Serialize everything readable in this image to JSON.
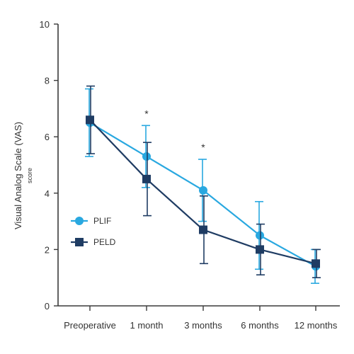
{
  "chart_data": {
    "type": "line",
    "categories": [
      "Preoperative",
      "1 month",
      "3 months",
      "6 months",
      "12 months"
    ],
    "ylabel": "Visual Analog Scale (VAS)",
    "ylabel_sub": "score",
    "ylim": [
      0,
      10
    ],
    "yticks": [
      0,
      2,
      4,
      6,
      8,
      10
    ],
    "grid": false,
    "legend_position": "left-center",
    "series": [
      {
        "name": "PLIF",
        "color": "#29a8e0",
        "marker": "circle",
        "values": [
          6.5,
          5.3,
          4.1,
          2.5,
          1.4
        ],
        "error": [
          1.2,
          1.1,
          1.1,
          1.2,
          0.6
        ]
      },
      {
        "name": "PELD",
        "color": "#1f3c63",
        "marker": "square",
        "values": [
          6.6,
          4.5,
          2.7,
          2.0,
          1.5
        ],
        "error": [
          1.2,
          1.3,
          1.2,
          0.9,
          0.5
        ]
      }
    ],
    "annotations": [
      {
        "category": "1 month",
        "text": "*"
      },
      {
        "category": "3 months",
        "text": "*"
      }
    ]
  }
}
